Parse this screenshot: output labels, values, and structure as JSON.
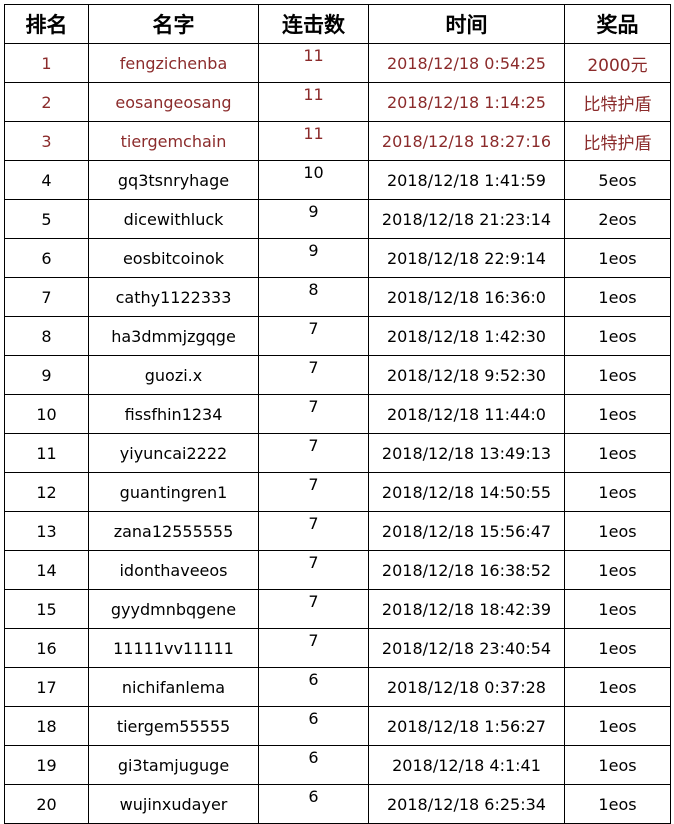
{
  "headers": [
    "排名",
    "名字",
    "连击数",
    "时间",
    "奖品"
  ],
  "rows": [
    {
      "rank": "1",
      "name": "fengzichenba",
      "streak": "11",
      "time": "2018/12/18 0:54:25",
      "prize": "2000元",
      "highlight": true
    },
    {
      "rank": "2",
      "name": "eosangeosang",
      "streak": "11",
      "time": "2018/12/18 1:14:25",
      "prize": "比特护盾",
      "highlight": true
    },
    {
      "rank": "3",
      "name": "tiergemchain",
      "streak": "11",
      "time": "2018/12/18 18:27:16",
      "prize": "比特护盾",
      "highlight": true
    },
    {
      "rank": "4",
      "name": "gq3tsnryhage",
      "streak": "10",
      "time": "2018/12/18 1:41:59",
      "prize": "5eos"
    },
    {
      "rank": "5",
      "name": "dicewithluck",
      "streak": "9",
      "time": "2018/12/18 21:23:14",
      "prize": "2eos"
    },
    {
      "rank": "6",
      "name": "eosbitcoinok",
      "streak": "9",
      "time": "2018/12/18 22:9:14",
      "prize": "1eos"
    },
    {
      "rank": "7",
      "name": "cathy1122333",
      "streak": "8",
      "time": "2018/12/18 16:36:0",
      "prize": "1eos"
    },
    {
      "rank": "8",
      "name": "ha3dmmjzgqge",
      "streak": "7",
      "time": "2018/12/18 1:42:30",
      "prize": "1eos"
    },
    {
      "rank": "9",
      "name": "guozi.x",
      "streak": "7",
      "time": "2018/12/18 9:52:30",
      "prize": "1eos"
    },
    {
      "rank": "10",
      "name": "fissfhin1234",
      "streak": "7",
      "time": "2018/12/18 11:44:0",
      "prize": "1eos"
    },
    {
      "rank": "11",
      "name": "yiyuncai2222",
      "streak": "7",
      "time": "2018/12/18 13:49:13",
      "prize": "1eos"
    },
    {
      "rank": "12",
      "name": "guantingren1",
      "streak": "7",
      "time": "2018/12/18 14:50:55",
      "prize": "1eos"
    },
    {
      "rank": "13",
      "name": "zana12555555",
      "streak": "7",
      "time": "2018/12/18 15:56:47",
      "prize": "1eos"
    },
    {
      "rank": "14",
      "name": "idonthaveeos",
      "streak": "7",
      "time": "2018/12/18 16:38:52",
      "prize": "1eos"
    },
    {
      "rank": "15",
      "name": "gyydmnbqgene",
      "streak": "7",
      "time": "2018/12/18 18:42:39",
      "prize": "1eos"
    },
    {
      "rank": "16",
      "name": "11111vv11111",
      "streak": "7",
      "time": "2018/12/18 23:40:54",
      "prize": "1eos"
    },
    {
      "rank": "17",
      "name": "nichifanlema",
      "streak": "6",
      "time": "2018/12/18 0:37:28",
      "prize": "1eos"
    },
    {
      "rank": "18",
      "name": "tiergem55555",
      "streak": "6",
      "time": "2018/12/18 1:56:27",
      "prize": "1eos"
    },
    {
      "rank": "19",
      "name": "gi3tamjuguge",
      "streak": "6",
      "time": "2018/12/18 4:1:41",
      "prize": "1eos"
    },
    {
      "rank": "20",
      "name": "wujinxudayer",
      "streak": "6",
      "time": "2018/12/18 6:25:34",
      "prize": "1eos"
    }
  ],
  "colors": {
    "highlight_text": "#8b2b2b",
    "text": "#000000",
    "border": "#000000"
  }
}
